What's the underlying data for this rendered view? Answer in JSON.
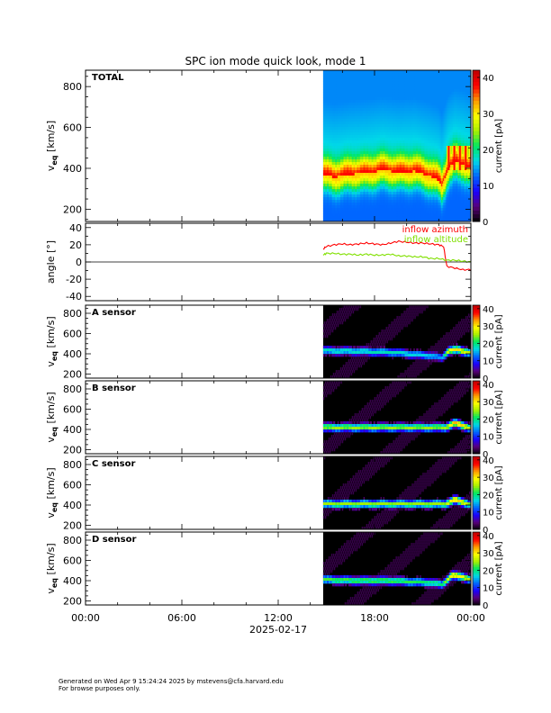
{
  "page": {
    "title": "SPC ion mode quick look, mode 1",
    "footer_line1": "Generated on Wed Apr  9 15:24:24 2025 by mstevens@cfa.harvard.edu",
    "footer_line2": "For browse purposes only."
  },
  "colors": {
    "background": "#ffffff",
    "axes": "#000000",
    "inflow_azimuth": "#ff0000",
    "inflow_altitude": "#80e000",
    "colormap": [
      "#000000",
      "#5a007a",
      "#1a00ff",
      "#0066ff",
      "#00d8e8",
      "#00e860",
      "#a8f000",
      "#ffff00",
      "#ff9a00",
      "#ff0000",
      "#c00000"
    ]
  },
  "chart_data": [
    {
      "id": "total",
      "type": "heatmap",
      "panel_label": "TOTAL",
      "ylabel_main": "v",
      "ylabel_sub": "eq",
      "ylabel_unit": "[km/s]",
      "ylim": [
        140,
        880
      ],
      "yticks": [
        200,
        400,
        600,
        800
      ],
      "xlim": [
        0,
        24
      ],
      "data_start_hour": 14.8,
      "colorbar": {
        "label": "current [pA]",
        "range": [
          0,
          42
        ],
        "ticks": [
          0,
          10,
          20,
          30,
          40
        ]
      },
      "background_level": 0.35,
      "profile": [
        {
          "hour": 14.8,
          "center": 370
        },
        {
          "hour": 15.5,
          "center": 355
        },
        {
          "hour": 16.5,
          "center": 370
        },
        {
          "hour": 17.5,
          "center": 375
        },
        {
          "hour": 18.5,
          "center": 390
        },
        {
          "hour": 19.5,
          "center": 380
        },
        {
          "hour": 20.5,
          "center": 385
        },
        {
          "hour": 21.5,
          "center": 360
        },
        {
          "hour": 22.0,
          "center": 340
        },
        {
          "hour": 22.2,
          "center": 310
        },
        {
          "hour": 22.6,
          "center": 400
        },
        {
          "hour": 23.0,
          "center": 430
        },
        {
          "hour": 23.5,
          "center": 420
        },
        {
          "hour": 24.0,
          "center": 400
        }
      ]
    },
    {
      "id": "angle",
      "type": "line",
      "ylabel_main": "angle [°]",
      "ylim": [
        -45,
        45
      ],
      "yticks": [
        -40,
        -20,
        0,
        20,
        40
      ],
      "xlim": [
        0,
        24
      ],
      "zero_line": true,
      "series": [
        {
          "name": "inflow azimuth",
          "color": "#ff0000",
          "x": [
            14.8,
            15.0,
            15.5,
            16.0,
            16.5,
            17.0,
            17.5,
            18.0,
            18.5,
            19.0,
            19.5,
            20.0,
            20.5,
            21.0,
            21.5,
            22.0,
            22.3,
            22.5,
            23.0,
            23.5,
            24.0
          ],
          "y": [
            15,
            18,
            20,
            21,
            20,
            21,
            22,
            21,
            20,
            22,
            24,
            23,
            22,
            22,
            21,
            20,
            18,
            -5,
            -7,
            -9,
            -9
          ]
        },
        {
          "name": "inflow altitude",
          "color": "#80e000",
          "x": [
            14.8,
            15.0,
            15.5,
            16.0,
            16.5,
            17.0,
            17.5,
            18.0,
            18.5,
            19.0,
            19.5,
            20.0,
            20.5,
            21.0,
            21.5,
            22.0,
            22.5,
            23.0,
            23.5,
            24.0
          ],
          "y": [
            8,
            10,
            10,
            9,
            9,
            8,
            9,
            8,
            8,
            9,
            7,
            7,
            6,
            6,
            4,
            4,
            2,
            2,
            1,
            0
          ]
        }
      ]
    },
    {
      "id": "sensor-a",
      "type": "heatmap",
      "panel_label": "A sensor",
      "ylabel_main": "v",
      "ylabel_sub": "eq",
      "ylabel_unit": "[km/s]",
      "ylim": [
        160,
        880
      ],
      "yticks": [
        200,
        400,
        600,
        800
      ],
      "xlim": [
        0,
        24
      ],
      "data_start_hour": 14.8,
      "colorbar": {
        "label": "current [pA]",
        "range": [
          0,
          42
        ],
        "ticks": [
          0,
          10,
          20,
          30,
          40
        ]
      },
      "profile": [
        {
          "hour": 14.8,
          "center": 430,
          "amp": 0.45
        },
        {
          "hour": 17.0,
          "center": 425,
          "amp": 0.45
        },
        {
          "hour": 19.0,
          "center": 415,
          "amp": 0.45
        },
        {
          "hour": 21.5,
          "center": 380,
          "amp": 0.4
        },
        {
          "hour": 22.2,
          "center": 360,
          "amp": 0.35
        },
        {
          "hour": 22.6,
          "center": 430,
          "amp": 0.7
        },
        {
          "hour": 23.2,
          "center": 440,
          "amp": 0.75
        },
        {
          "hour": 24.0,
          "center": 410,
          "amp": 0.6
        }
      ]
    },
    {
      "id": "sensor-b",
      "type": "heatmap",
      "panel_label": "B sensor",
      "ylabel_main": "v",
      "ylabel_sub": "eq",
      "ylabel_unit": "[km/s]",
      "ylim": [
        160,
        880
      ],
      "yticks": [
        200,
        400,
        600,
        800
      ],
      "xlim": [
        0,
        24
      ],
      "data_start_hour": 14.8,
      "colorbar": {
        "label": "current [pA]",
        "range": [
          0,
          42
        ],
        "ticks": [
          0,
          10,
          20,
          30,
          40
        ]
      },
      "profile": [
        {
          "hour": 22.4,
          "center": 420,
          "amp": 0.6
        },
        {
          "hour": 23.0,
          "center": 460,
          "amp": 0.8
        },
        {
          "hour": 23.5,
          "center": 440,
          "amp": 0.75
        },
        {
          "hour": 24.0,
          "center": 410,
          "amp": 0.6
        }
      ]
    },
    {
      "id": "sensor-c",
      "type": "heatmap",
      "panel_label": "C sensor",
      "ylabel_main": "v",
      "ylabel_sub": "eq",
      "ylabel_unit": "[km/s]",
      "ylim": [
        160,
        880
      ],
      "yticks": [
        200,
        400,
        600,
        800
      ],
      "xlim": [
        0,
        24
      ],
      "data_start_hour": 14.8,
      "colorbar": {
        "label": "current [pA]",
        "range": [
          0,
          42
        ],
        "ticks": [
          0,
          10,
          20,
          30,
          40
        ]
      },
      "profile": [
        {
          "hour": 22.4,
          "center": 410,
          "amp": 0.6
        },
        {
          "hour": 23.0,
          "center": 450,
          "amp": 0.8
        },
        {
          "hour": 23.5,
          "center": 430,
          "amp": 0.7
        },
        {
          "hour": 24.0,
          "center": 400,
          "amp": 0.55
        }
      ]
    },
    {
      "id": "sensor-d",
      "type": "heatmap",
      "panel_label": "D sensor",
      "ylabel_main": "v",
      "ylabel_sub": "eq",
      "ylabel_unit": "[km/s]",
      "ylim": [
        160,
        880
      ],
      "yticks": [
        200,
        400,
        600,
        800
      ],
      "xlim": [
        0,
        24
      ],
      "data_start_hour": 14.8,
      "colorbar": {
        "label": "current [pA]",
        "range": [
          0,
          42
        ],
        "ticks": [
          0,
          10,
          20,
          30,
          40
        ]
      },
      "profile": [
        {
          "hour": 14.8,
          "center": 410,
          "amp": 0.55
        },
        {
          "hour": 17.0,
          "center": 400,
          "amp": 0.55
        },
        {
          "hour": 19.0,
          "center": 400,
          "amp": 0.55
        },
        {
          "hour": 21.5,
          "center": 380,
          "amp": 0.5
        },
        {
          "hour": 22.2,
          "center": 360,
          "amp": 0.5
        },
        {
          "hour": 22.8,
          "center": 450,
          "amp": 0.75
        },
        {
          "hour": 23.5,
          "center": 440,
          "amp": 0.7
        },
        {
          "hour": 24.0,
          "center": 410,
          "amp": 0.6
        }
      ]
    }
  ],
  "x_axis": {
    "ticks": [
      0,
      6,
      12,
      18,
      24
    ],
    "tick_labels": [
      "00:00",
      "06:00",
      "12:00",
      "18:00",
      "00:00"
    ],
    "date_label": "2025-02-17"
  }
}
